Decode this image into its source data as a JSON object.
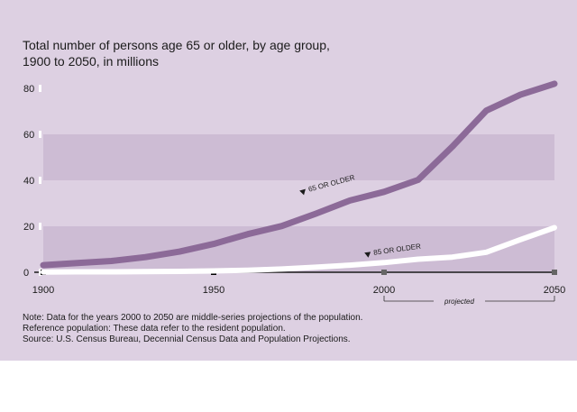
{
  "chart_data": {
    "type": "line",
    "title": "Total number of persons age 65 or older, by age group,",
    "subtitle": "1900 to 2050, in millions",
    "x": [
      1900,
      1910,
      1920,
      1930,
      1940,
      1950,
      1960,
      1970,
      1980,
      1990,
      2000,
      2010,
      2020,
      2030,
      2040,
      2050
    ],
    "series": [
      {
        "name": "65 OR OLDER",
        "color": "#8c6a98",
        "values": [
          3.1,
          4.0,
          4.9,
          6.6,
          9.0,
          12.3,
          16.6,
          20.1,
          25.5,
          31.2,
          35.0,
          40.2,
          54.6,
          70.3,
          77.2,
          82.0
        ]
      },
      {
        "name": "85 OR OLDER",
        "color": "#ffffff",
        "values": [
          0.1,
          0.2,
          0.2,
          0.3,
          0.4,
          0.6,
          0.9,
          1.4,
          2.2,
          3.1,
          4.2,
          5.7,
          6.6,
          8.7,
          14.2,
          19.4
        ]
      }
    ],
    "ylim": [
      0,
      80
    ],
    "y_ticks": [
      0,
      20,
      40,
      60,
      80
    ],
    "xlim": [
      1900,
      2050
    ],
    "x_ticks": [
      1900,
      1950,
      2000,
      2050
    ],
    "projected_range": [
      2000,
      2050
    ],
    "projected_label": "projected",
    "grid": "horizontal bands",
    "band_color": "#cdbcd4"
  },
  "notes": [
    "Note: Data for the years 2000 to 2050 are middle-series projections of the population.",
    "Reference population: These data refer to the resident population.",
    "Source: U.S. Census Bureau, Decennial Census Data and Population Projections."
  ]
}
